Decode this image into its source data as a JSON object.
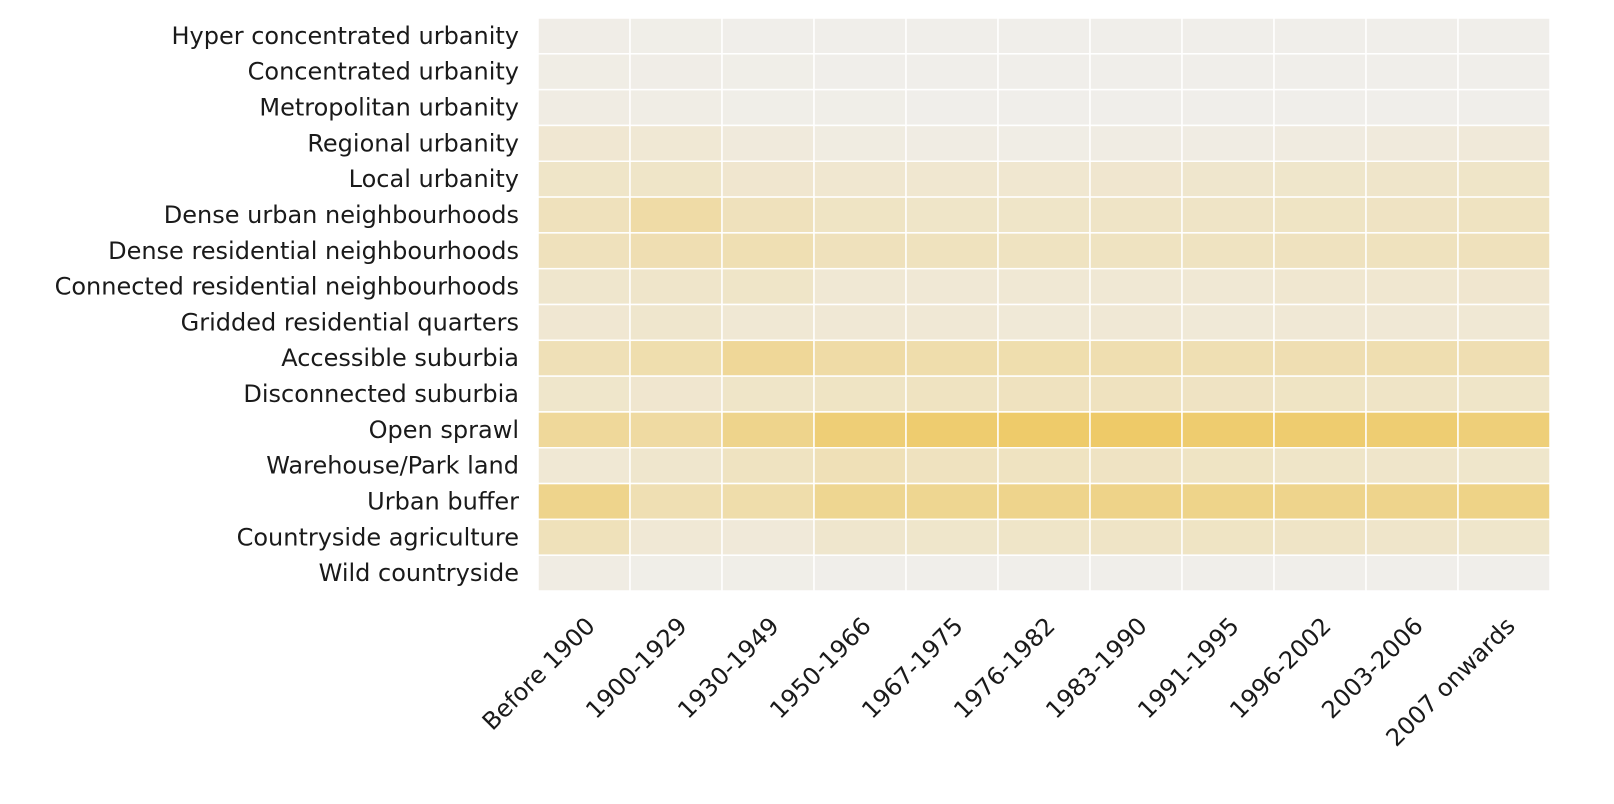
{
  "chart_data": {
    "type": "heatmap",
    "title": "",
    "xlabel": "",
    "ylabel": "",
    "grid": true,
    "legend": "none",
    "columns": [
      "Before 1900",
      "1900-1929",
      "1930-1949",
      "1950-1966",
      "1967-1975",
      "1976-1982",
      "1983-1990",
      "1991-1995",
      "1996-2002",
      "2003-2006",
      "2007 onwards"
    ],
    "rows": [
      "Hyper concentrated urbanity",
      "Concentrated urbanity",
      "Metropolitan urbanity",
      "Regional urbanity",
      "Local urbanity",
      "Dense urban neighbourhoods",
      "Dense residential neighbourhoods",
      "Connected residential neighbourhoods",
      "Gridded residential quarters",
      "Accessible suburbia",
      "Disconnected suburbia",
      "Open sprawl",
      "Warehouse/Park land",
      "Urban buffer",
      "Countryside agriculture",
      "Wild countryside"
    ],
    "values": [
      [
        0.02,
        0.01,
        0.0,
        0.0,
        0.0,
        0.0,
        0.0,
        0.0,
        0.0,
        0.0,
        0.0
      ],
      [
        0.03,
        0.02,
        0.01,
        0.0,
        0.0,
        0.0,
        0.0,
        0.0,
        0.0,
        0.0,
        0.0
      ],
      [
        0.04,
        0.03,
        0.01,
        0.01,
        0.0,
        0.0,
        0.0,
        0.0,
        0.0,
        0.0,
        0.0
      ],
      [
        0.14,
        0.13,
        0.08,
        0.05,
        0.04,
        0.03,
        0.04,
        0.04,
        0.06,
        0.08,
        0.1
      ],
      [
        0.2,
        0.2,
        0.16,
        0.15,
        0.15,
        0.15,
        0.16,
        0.17,
        0.18,
        0.19,
        0.2
      ],
      [
        0.27,
        0.4,
        0.27,
        0.22,
        0.2,
        0.2,
        0.21,
        0.21,
        0.22,
        0.23,
        0.24
      ],
      [
        0.27,
        0.33,
        0.32,
        0.27,
        0.26,
        0.24,
        0.24,
        0.24,
        0.25,
        0.26,
        0.27
      ],
      [
        0.17,
        0.19,
        0.2,
        0.13,
        0.12,
        0.13,
        0.13,
        0.13,
        0.15,
        0.15,
        0.16
      ],
      [
        0.14,
        0.17,
        0.13,
        0.12,
        0.12,
        0.11,
        0.12,
        0.11,
        0.12,
        0.12,
        0.13
      ],
      [
        0.3,
        0.35,
        0.48,
        0.4,
        0.36,
        0.35,
        0.34,
        0.32,
        0.33,
        0.34,
        0.33
      ],
      [
        0.18,
        0.16,
        0.2,
        0.22,
        0.24,
        0.25,
        0.25,
        0.23,
        0.22,
        0.21,
        0.2
      ],
      [
        0.47,
        0.42,
        0.55,
        0.68,
        0.72,
        0.75,
        0.76,
        0.72,
        0.72,
        0.7,
        0.66
      ],
      [
        0.13,
        0.17,
        0.24,
        0.3,
        0.25,
        0.24,
        0.23,
        0.22,
        0.2,
        0.19,
        0.18
      ],
      [
        0.55,
        0.32,
        0.37,
        0.52,
        0.52,
        0.55,
        0.57,
        0.56,
        0.55,
        0.55,
        0.58
      ],
      [
        0.28,
        0.12,
        0.1,
        0.17,
        0.18,
        0.2,
        0.21,
        0.22,
        0.21,
        0.19,
        0.18
      ],
      [
        0.04,
        0.01,
        0.01,
        0.0,
        0.0,
        0.0,
        0.0,
        0.0,
        0.0,
        0.0,
        0.0
      ]
    ],
    "value_range": [
      0,
      1
    ],
    "colors": {
      "low": "#f0eeea",
      "high": "#edbf3f",
      "grid_line": "#ffffff"
    }
  }
}
